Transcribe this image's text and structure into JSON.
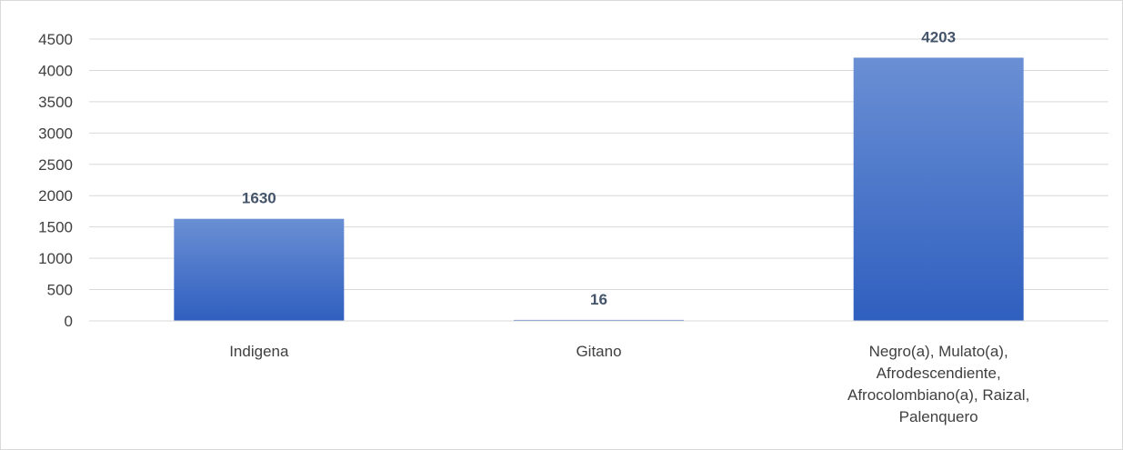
{
  "chart_data": {
    "type": "bar",
    "title": "",
    "xlabel": "",
    "ylabel": "",
    "categories": [
      "Indigena",
      "Gitano",
      "Negro(a), Mulato(a), Afrodescendiente, Afrocolombiano(a), Raizal, Palenquero"
    ],
    "category_lines": [
      [
        "Indigena"
      ],
      [
        "Gitano"
      ],
      [
        "Negro(a), Mulato(a),",
        "Afrodescendiente,",
        "Afrocolombiano(a), Raizal,",
        "Palenquero"
      ]
    ],
    "values": [
      1630,
      16,
      4203
    ],
    "data_labels": [
      "1630",
      "16",
      "4203"
    ],
    "ylim": [
      0,
      4500
    ],
    "yticks": [
      0,
      500,
      1000,
      1500,
      2000,
      2500,
      3000,
      3500,
      4000,
      4500
    ],
    "ytick_labels": [
      "0",
      "500",
      "1000",
      "1500",
      "2000",
      "2500",
      "3000",
      "3500",
      "4000",
      "4500"
    ],
    "grid": true,
    "legend": "none",
    "colors": {
      "bar_top": "#6a8fd4",
      "bar_bottom": "#2f5fbf",
      "grid": "#d9d9d9",
      "axis": "#d9d9d9",
      "tick_text": "#404040",
      "data_label_text": "#44546a"
    }
  }
}
